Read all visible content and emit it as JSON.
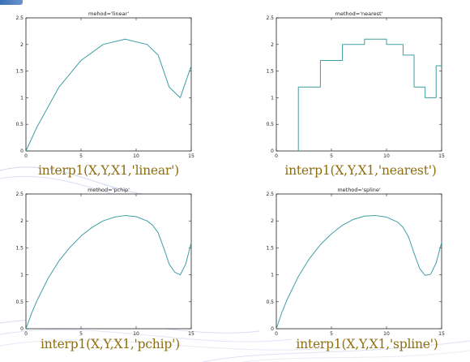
{
  "colors": {
    "line": "#3f9ea4",
    "axis": "#222222",
    "caption": "#8f6e10"
  },
  "captions": [
    "interp1(X,Y,X1,'linear')",
    "interp1(X,Y,X1,'nearest')",
    "interp1(X,Y,X1,'pchip')",
    "interp1(X,Y,X1,'spline')"
  ],
  "chart_data": [
    {
      "type": "line",
      "title": "mehod='linear'",
      "xlabel": "",
      "ylabel": "",
      "xlim": [
        0,
        15
      ],
      "ylim": [
        0,
        2.5
      ],
      "xticks": [
        "0",
        "5",
        "10",
        "15"
      ],
      "yticks": [
        "0",
        "0.5",
        "1",
        "1.5",
        "2",
        "2.5"
      ],
      "grid": false,
      "series": [
        {
          "x": [
            0,
            1,
            3,
            5,
            7,
            9,
            11,
            12,
            13,
            14,
            15
          ],
          "y": [
            0,
            0.45,
            1.2,
            1.7,
            2.0,
            2.1,
            2.0,
            1.8,
            1.2,
            1.0,
            1.6
          ]
        }
      ]
    },
    {
      "type": "line",
      "title": "method='nearest'",
      "xlabel": "",
      "ylabel": "",
      "xlim": [
        0,
        15
      ],
      "ylim": [
        0,
        2.5
      ],
      "xticks": [
        "0",
        "5",
        "10",
        "15"
      ],
      "yticks": [
        "0",
        "0.5",
        "1",
        "1.5",
        "2",
        "2.5"
      ],
      "grid": false,
      "series": [
        {
          "x": [
            2,
            2,
            2,
            4,
            4,
            6,
            6,
            8,
            8,
            10,
            10,
            11.5,
            11.5,
            12.5,
            12.5,
            13.5,
            13.5,
            14.5,
            14.5,
            15
          ],
          "y": [
            0,
            0.45,
            1.2,
            1.2,
            1.7,
            1.7,
            2.0,
            2.0,
            2.1,
            2.1,
            2.0,
            2.0,
            1.8,
            1.8,
            1.2,
            1.2,
            1.0,
            1.0,
            1.6,
            1.6
          ]
        }
      ]
    },
    {
      "type": "line",
      "title": "method='pchip'",
      "xlabel": "",
      "ylabel": "",
      "xlim": [
        0,
        15
      ],
      "ylim": [
        0,
        2.5
      ],
      "xticks": [
        "0",
        "5",
        "10",
        "15"
      ],
      "yticks": [
        "0",
        "0.5",
        "1",
        "1.5",
        "2",
        "2.5"
      ],
      "grid": false,
      "series": [
        {
          "x": [
            0,
            0.5,
            1,
            2,
            3,
            4,
            5,
            6,
            7,
            8,
            9,
            10,
            11,
            11.5,
            12,
            12.5,
            13,
            13.5,
            14,
            14.5,
            15
          ],
          "y": [
            0,
            0.28,
            0.52,
            0.93,
            1.26,
            1.51,
            1.72,
            1.88,
            2.0,
            2.07,
            2.1,
            2.08,
            2.0,
            1.92,
            1.78,
            1.5,
            1.2,
            1.05,
            1.0,
            1.2,
            1.6
          ]
        }
      ]
    },
    {
      "type": "line",
      "title": "method='spline'",
      "xlabel": "",
      "ylabel": "",
      "xlim": [
        0,
        15
      ],
      "ylim": [
        0,
        2.5
      ],
      "xticks": [
        "0",
        "5",
        "10",
        "15"
      ],
      "yticks": [
        "0",
        "0.5",
        "1",
        "1.5",
        "2",
        "2.5"
      ],
      "grid": false,
      "series": [
        {
          "x": [
            0,
            0.5,
            1,
            2,
            3,
            4,
            5,
            6,
            7,
            8,
            9,
            10,
            11,
            11.5,
            12,
            12.5,
            13,
            13.5,
            14,
            14.5,
            15
          ],
          "y": [
            0,
            0.3,
            0.55,
            0.97,
            1.3,
            1.56,
            1.76,
            1.92,
            2.03,
            2.09,
            2.1,
            2.07,
            1.98,
            1.88,
            1.7,
            1.4,
            1.12,
            0.99,
            1.01,
            1.22,
            1.6
          ]
        }
      ]
    }
  ]
}
